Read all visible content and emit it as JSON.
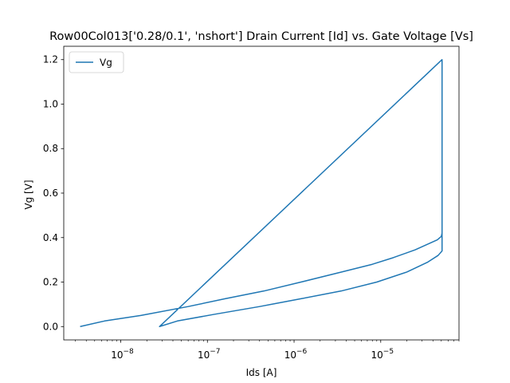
{
  "chart_data": {
    "type": "line",
    "title": "Row00Col013['0.28/0.1', 'nshort'] Drain Current [Id] vs. Gate Voltage [Vs]",
    "xlabel": "Ids [A]",
    "ylabel": "Vg [V]",
    "xscale": "log",
    "xlim": [
      2.2e-09,
      8e-05
    ],
    "ylim": [
      -0.06,
      1.26
    ],
    "xticks": [
      {
        "value": 1e-08,
        "label": "10",
        "exp": "−8"
      },
      {
        "value": 1e-07,
        "label": "10",
        "exp": "−7"
      },
      {
        "value": 1e-06,
        "label": "10",
        "exp": "−6"
      },
      {
        "value": 1e-05,
        "label": "10",
        "exp": "−5"
      }
    ],
    "yticks": [
      {
        "value": 0.0,
        "label": "0.0"
      },
      {
        "value": 0.2,
        "label": "0.2"
      },
      {
        "value": 0.4,
        "label": "0.4"
      },
      {
        "value": 0.6,
        "label": "0.6"
      },
      {
        "value": 0.8,
        "label": "0.8"
      },
      {
        "value": 1.0,
        "label": "1.0"
      },
      {
        "value": 1.2,
        "label": "1.2"
      }
    ],
    "grid": false,
    "legend": {
      "position": "top-left",
      "entries": [
        "Vg"
      ]
    },
    "series": [
      {
        "name": "Vg",
        "color": "#1f77b4",
        "points": [
          [
            3.4e-09,
            0.0
          ],
          [
            6.5e-09,
            0.025
          ],
          [
            1.7e-08,
            0.05
          ],
          [
            6e-08,
            0.09
          ],
          [
            1.6e-07,
            0.125
          ],
          [
            4.5e-07,
            0.16
          ],
          [
            1.2e-06,
            0.2
          ],
          [
            3.5e-06,
            0.245
          ],
          [
            8e-06,
            0.28
          ],
          [
            1.4e-05,
            0.31
          ],
          [
            2.5e-05,
            0.345
          ],
          [
            4.5e-05,
            0.39
          ],
          [
            5e-05,
            0.405
          ],
          [
            5.1e-05,
            0.42
          ],
          [
            5.1e-05,
            1.2
          ],
          [
            2.8e-08,
            0.0
          ],
          [
            4.5e-08,
            0.025
          ],
          [
            1.2e-07,
            0.055
          ],
          [
            4e-07,
            0.09
          ],
          [
            1.2e-06,
            0.125
          ],
          [
            3.5e-06,
            0.16
          ],
          [
            9e-06,
            0.2
          ],
          [
            2e-05,
            0.245
          ],
          [
            3.5e-05,
            0.29
          ],
          [
            4.6e-05,
            0.32
          ],
          [
            5.1e-05,
            0.34
          ],
          [
            5.1e-05,
            0.42
          ]
        ]
      }
    ]
  }
}
